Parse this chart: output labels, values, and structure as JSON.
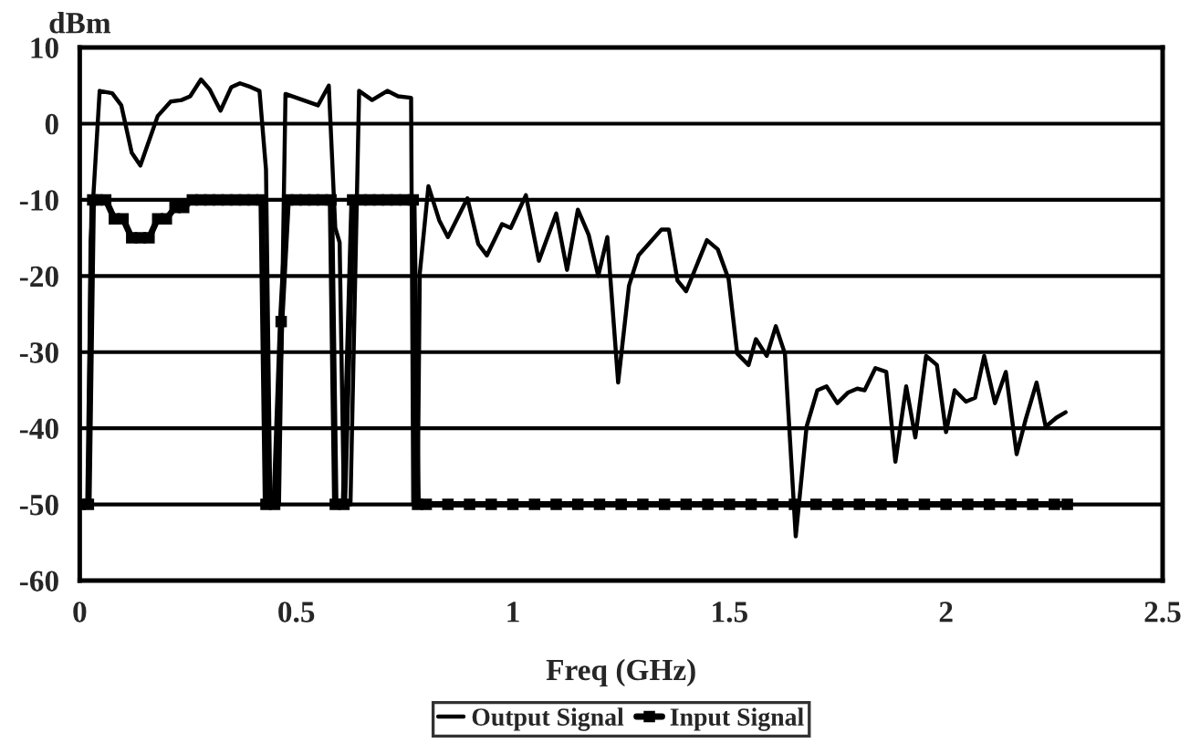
{
  "chart_data": {
    "type": "line",
    "xlabel": "Freq (GHz)",
    "ylabel": "dBm",
    "xlim": [
      0,
      2.5
    ],
    "xticks": [
      0,
      0.5,
      1,
      1.5,
      2,
      2.5
    ],
    "ylim": [
      -60,
      10
    ],
    "yticks": [
      -60,
      -50,
      -40,
      -30,
      -20,
      -10,
      0,
      10
    ],
    "grid": "y",
    "legend": "bottom",
    "line_style": "solid",
    "series": [
      {
        "name": "Output Signal",
        "color": "#000000",
        "marker": "none",
        "x": [
          0.02,
          0.025,
          0.046,
          0.075,
          0.096,
          0.12,
          0.14,
          0.18,
          0.21,
          0.235,
          0.255,
          0.28,
          0.3,
          0.325,
          0.35,
          0.37,
          0.395,
          0.415,
          0.43,
          0.44,
          0.46,
          0.475,
          0.55,
          0.575,
          0.59,
          0.6,
          0.61,
          0.625,
          0.645,
          0.675,
          0.71,
          0.735,
          0.765,
          0.77,
          0.78,
          0.785,
          0.805,
          0.83,
          0.85,
          0.895,
          0.92,
          0.94,
          0.975,
          0.995,
          1.03,
          1.06,
          1.1,
          1.125,
          1.15,
          1.175,
          1.197,
          1.218,
          1.243,
          1.268,
          1.29,
          1.343,
          1.36,
          1.38,
          1.4,
          1.448,
          1.473,
          1.498,
          1.518,
          1.544,
          1.561,
          1.586,
          1.607,
          1.628,
          1.653,
          1.678,
          1.703,
          1.724,
          1.749,
          1.774,
          1.795,
          1.812,
          1.837,
          1.862,
          1.883,
          1.908,
          1.929,
          1.954,
          1.979,
          2.0,
          2.02,
          2.046,
          2.067,
          2.088,
          2.113,
          2.138,
          2.163,
          2.184,
          2.209,
          2.23,
          2.255,
          2.276
        ],
        "values": [
          -50,
          -15.6,
          4.3,
          4,
          2.4,
          -3.8,
          -5.5,
          1,
          2.9,
          3.1,
          3.6,
          5.8,
          4.5,
          1.7,
          4.8,
          5.3,
          4.8,
          4.3,
          -6,
          -50,
          -50,
          3.9,
          2.4,
          5,
          -13.7,
          -15.6,
          -50,
          -50,
          4.3,
          3.1,
          4.3,
          3.6,
          3.4,
          -50,
          -50,
          -19.7,
          -8.2,
          -12.7,
          -14.9,
          -9.8,
          -15.8,
          -17.3,
          -13.2,
          -13.7,
          -9.4,
          -18,
          -11.8,
          -19.2,
          -11.3,
          -14.6,
          -20,
          -14.9,
          -34,
          -21.3,
          -17.3,
          -13.9,
          -13.9,
          -20.6,
          -22,
          -15.3,
          -16.5,
          -20.4,
          -30.2,
          -31.7,
          -28.3,
          -30.5,
          -26.6,
          -30.2,
          -54.2,
          -39.8,
          -35,
          -34.5,
          -36.7,
          -35.3,
          -34.8,
          -35,
          -32.1,
          -32.6,
          -44.4,
          -34.5,
          -41.2,
          -30.5,
          -31.7,
          -40.5,
          -35,
          -36.5,
          -36,
          -30.5,
          -36.7,
          -32.6,
          -43.4,
          -38.8,
          -34,
          -39.8,
          -38.6,
          -37.9
        ]
      },
      {
        "name": "Input Signal",
        "color": "#000000",
        "marker": "square",
        "x": [
          0,
          0.02,
          0.03,
          0.04,
          0.06,
          0.08,
          0.1,
          0.12,
          0.14,
          0.16,
          0.18,
          0.2,
          0.22,
          0.24,
          0.26,
          0.28,
          0.3,
          0.32,
          0.34,
          0.36,
          0.38,
          0.4,
          0.42,
          0.43,
          0.45,
          0.465,
          0.48,
          0.5,
          0.52,
          0.54,
          0.56,
          0.58,
          0.59,
          0.61,
          0.63,
          0.65,
          0.67,
          0.69,
          0.71,
          0.73,
          0.75,
          0.77,
          0.78,
          0.8,
          0.85,
          0.9,
          0.95,
          1.0,
          1.05,
          1.1,
          1.15,
          1.2,
          1.25,
          1.3,
          1.35,
          1.4,
          1.45,
          1.5,
          1.55,
          1.6,
          1.65,
          1.7,
          1.75,
          1.8,
          1.85,
          1.9,
          1.95,
          2.0,
          2.05,
          2.1,
          2.15,
          2.2,
          2.25,
          2.28
        ],
        "values": [
          -50,
          -50,
          -10,
          -10,
          -10,
          -12.5,
          -12.5,
          -15,
          -15,
          -15,
          -12.5,
          -12.5,
          -11,
          -11,
          -10,
          -10,
          -10,
          -10,
          -10,
          -10,
          -10,
          -10,
          -10,
          -50,
          -50,
          -26,
          -10,
          -10,
          -10,
          -10,
          -10,
          -10,
          -50,
          -50,
          -10,
          -10,
          -10,
          -10,
          -10,
          -10,
          -10,
          -10,
          -50,
          -50,
          -50,
          -50,
          -50,
          -50,
          -50,
          -50,
          -50,
          -50,
          -50,
          -50,
          -50,
          -50,
          -50,
          -50,
          -50,
          -50,
          -50,
          -50,
          -50,
          -50,
          -50,
          -50,
          -50,
          -50,
          -50,
          -50,
          -50,
          -50,
          -50,
          -50
        ]
      }
    ]
  }
}
